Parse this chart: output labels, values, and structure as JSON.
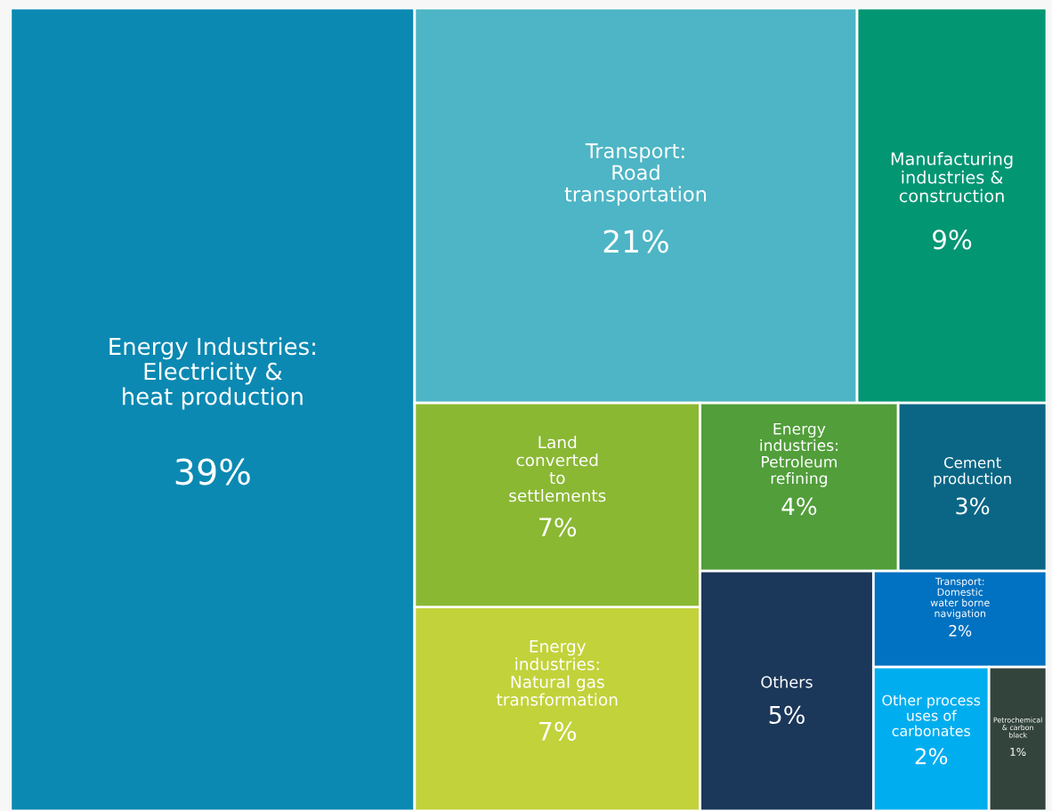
{
  "chart_data": {
    "type": "other",
    "categories": [
      "Energy Industries:\nElectricity &\nheat production",
      "Transport:\nRoad\ntransportation",
      "Manufacturing\nindustries &\nconstruction",
      "Energy\nindustries:\nNatural gas\ntransformation",
      "Land\nconverted\nto\nsettlements",
      "Energy\nindustries:\nPetroleum\nrefining",
      "Cement\nproduction",
      "Others",
      "Transport:\nDomestic\nwater borne\nnavigation",
      "Other process\nuses of\ncarbonates",
      "Petrochemical\n& carbon\nblack"
    ],
    "values": [
      39,
      21,
      9,
      7,
      7,
      4,
      3,
      5,
      2,
      2,
      1
    ],
    "value_labels": [
      "39%",
      "21%",
      "9%",
      "7%",
      "7%",
      "4%",
      "3%",
      "5%",
      "2%",
      "2%",
      "1%"
    ],
    "colors": [
      "#0b89b2",
      "#4db5c5",
      "#039673",
      "#c2d23a",
      "#8ab833",
      "#519e3a",
      "#0b6685",
      "#1b375a",
      "#0171c1",
      "#00aeef",
      "#33443d"
    ]
  }
}
